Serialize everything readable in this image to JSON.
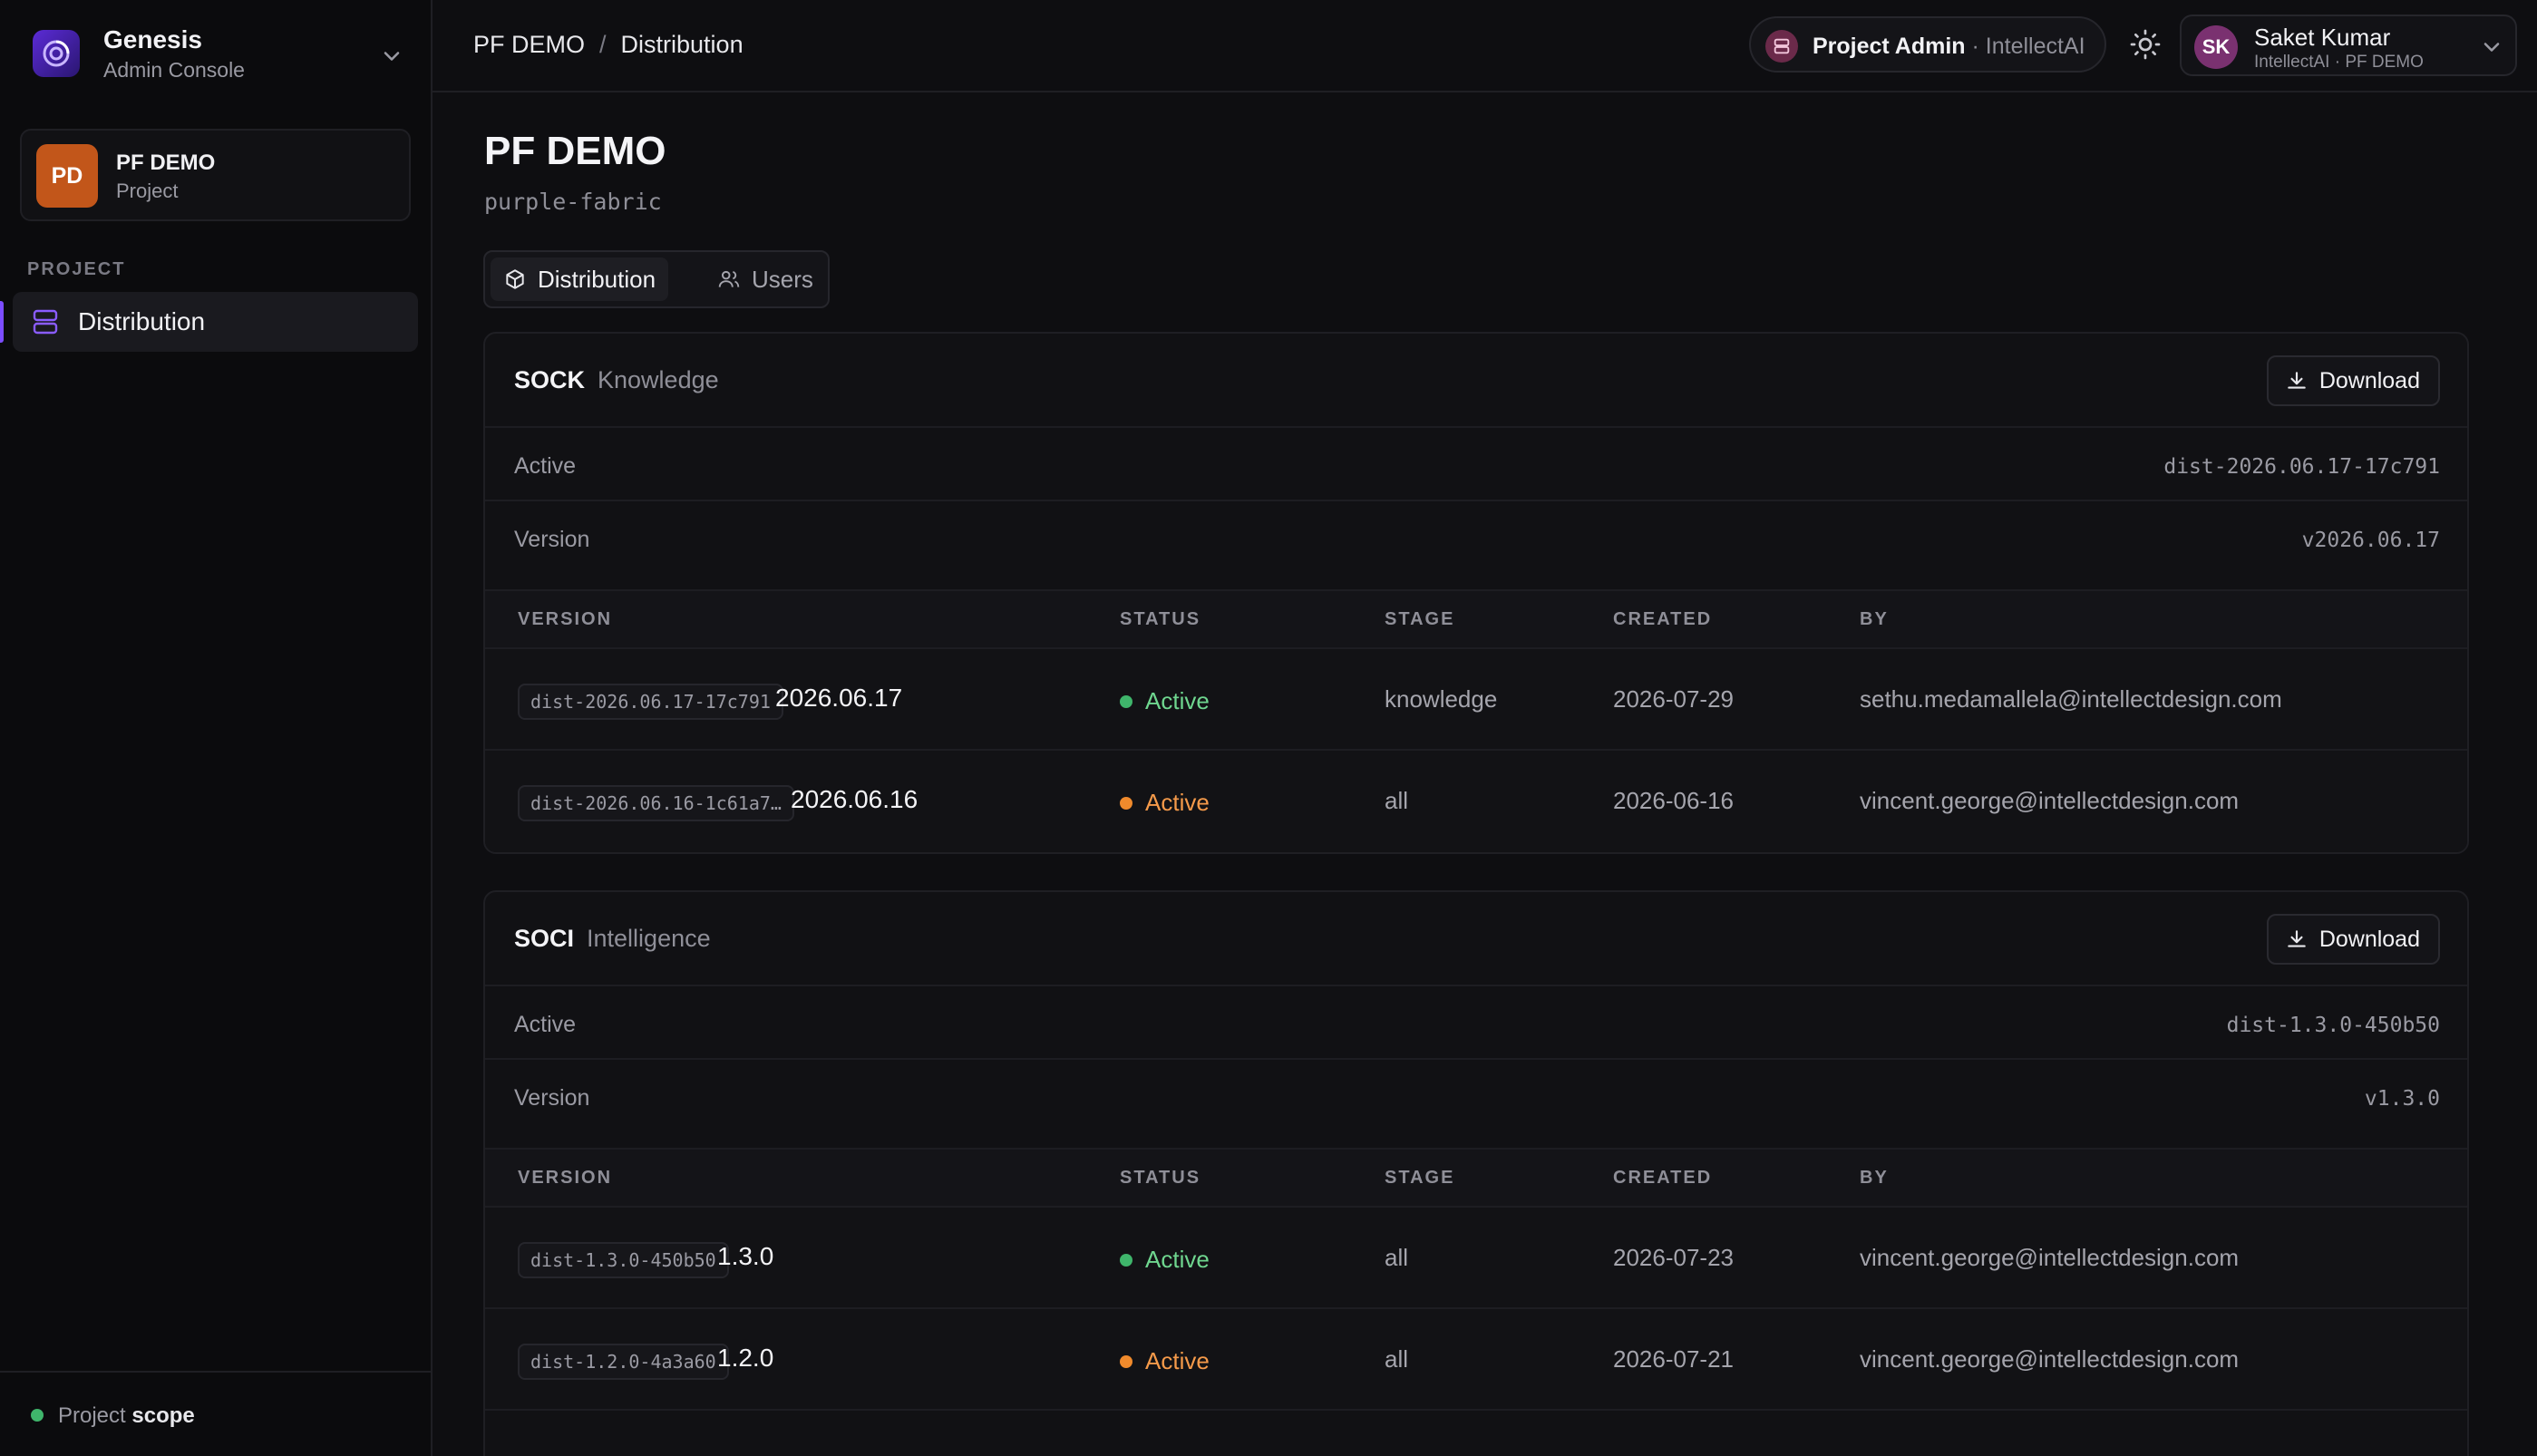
{
  "app": {
    "name": "Genesis",
    "subtitle": "Admin Console"
  },
  "project": {
    "initials": "PD",
    "name": "PF DEMO",
    "type": "Project"
  },
  "sidebar": {
    "section_label": "PROJECT",
    "items": [
      {
        "label": "Distribution",
        "icon": "server-icon",
        "active": true
      }
    ],
    "footer": {
      "prefix": "Project",
      "emphasis": "scope"
    }
  },
  "topbar": {
    "breadcrumb": [
      "PF DEMO",
      "Distribution"
    ],
    "breadcrumb_sep": "/",
    "role": {
      "label": "Project Admin",
      "org": "· IntellectAI"
    },
    "user": {
      "initials": "SK",
      "name": "Saket Kumar",
      "meta": "IntellectAI · PF DEMO"
    }
  },
  "page": {
    "title": "PF DEMO",
    "slug": "purple-fabric",
    "tabs": [
      {
        "label": "Distribution",
        "icon": "box-icon",
        "active": true
      },
      {
        "label": "Users",
        "icon": "users-icon",
        "active": false
      }
    ]
  },
  "table_headers": {
    "version": "VERSION",
    "status": "STATUS",
    "stage": "STAGE",
    "created": "CREATED",
    "by": "BY"
  },
  "cards": [
    {
      "name": "SOCK",
      "kind": "Knowledge",
      "download_label": "Download",
      "active_label": "Active",
      "active_value": "dist-2026.06.17-17c791",
      "version_label": "Version",
      "version_value": "v2026.06.17",
      "rows": [
        {
          "tag": "dist-2026.06.17-17c791",
          "version": "2026.06.17",
          "status": "Active",
          "stage": "knowledge",
          "created": "2026-07-29",
          "by": "sethu.medamallela@intellectdesign.com"
        },
        {
          "tag": "dist-2026.06.16-1c61a7…",
          "version": "2026.06.16",
          "status": "Active",
          "stage": "all",
          "created": "2026-06-16",
          "by": "vincent.george@intellectdesign.com"
        }
      ]
    },
    {
      "name": "SOCI",
      "kind": "Intelligence",
      "download_label": "Download",
      "active_label": "Active",
      "active_value": "dist-1.3.0-450b50",
      "version_label": "Version",
      "version_value": "v1.3.0",
      "rows": [
        {
          "tag": "dist-1.3.0-450b50",
          "version": "1.3.0",
          "status": "Active",
          "stage": "all",
          "created": "2026-07-23",
          "by": "vincent.george@intellectdesign.com"
        },
        {
          "tag": "dist-1.2.0-4a3a60",
          "version": "1.2.0",
          "status": "Active",
          "stage": "all",
          "created": "2026-07-21",
          "by": "vincent.george@intellectdesign.com"
        }
      ]
    }
  ],
  "colors": {
    "accent": "#7c4dff",
    "status_active": "#3fb56b",
    "status_warn": "#f08a2c",
    "project_avatar": "#c2561a"
  }
}
